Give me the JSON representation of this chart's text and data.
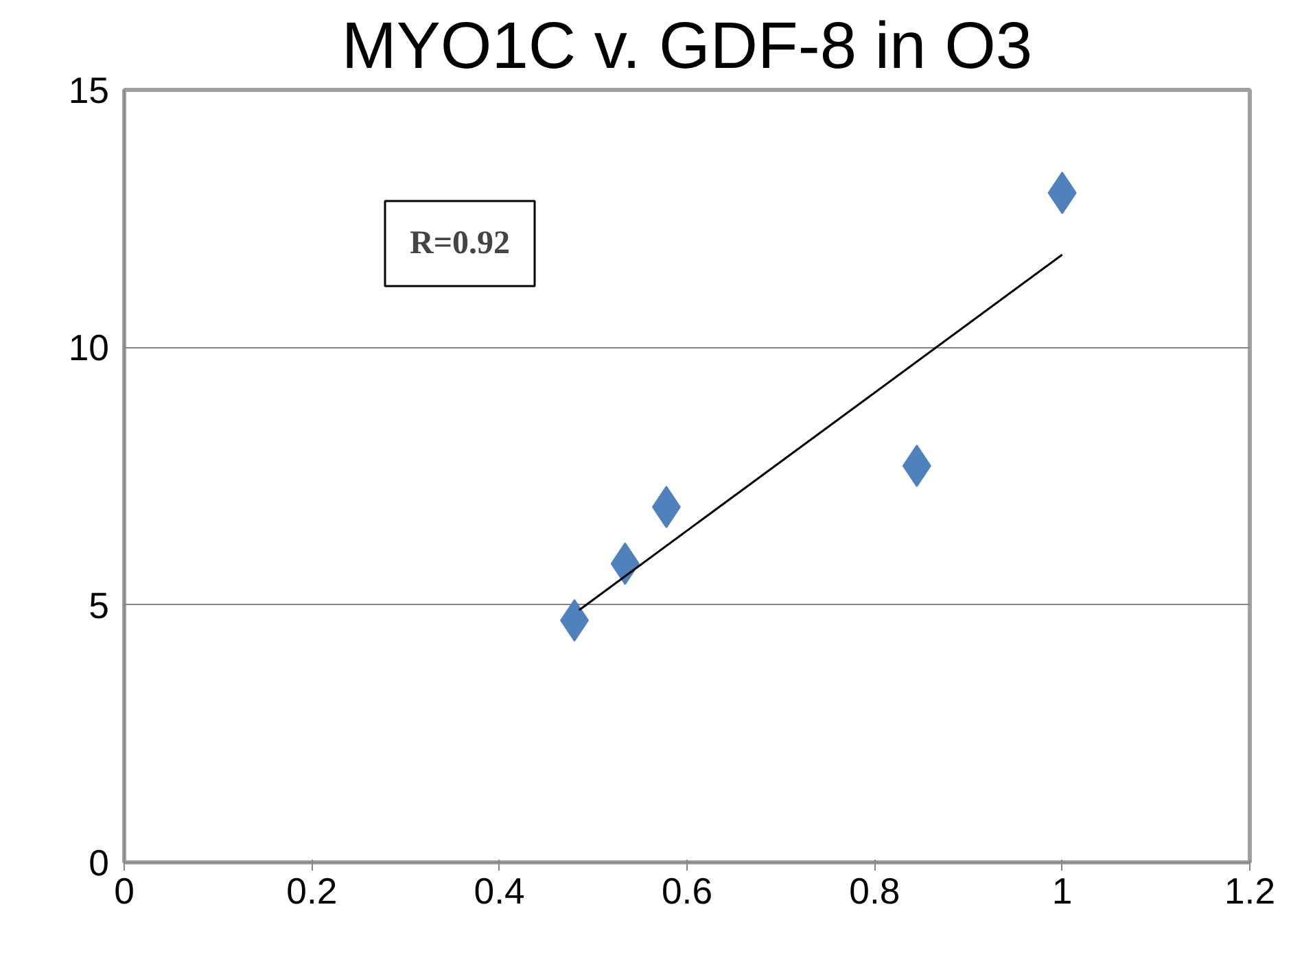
{
  "chart_data": {
    "type": "scatter",
    "title": "MYO1C v. GDF-8 in O3",
    "annotations": [
      "R=0.92"
    ],
    "series": [
      {
        "color": "#4f81bd",
        "marker": "diamond",
        "x": [
          0.48,
          0.534,
          0.578,
          0.845,
          1.0
        ],
        "values": [
          4.7,
          5.8,
          6.9,
          7.7,
          13.0
        ]
      },
      {
        "type": "line",
        "color": "#000000",
        "marker": "none",
        "line_style": "solid",
        "x": [
          0.485,
          1.0
        ],
        "values": [
          4.9,
          11.8
        ]
      }
    ],
    "xlim": [
      0,
      1.2
    ],
    "xticks": [
      0,
      0.2,
      0.4,
      0.6,
      0.8,
      1,
      1.2
    ],
    "ylim": [
      0,
      15
    ],
    "yticks": [
      0,
      5,
      10,
      15
    ],
    "grid": "y"
  }
}
